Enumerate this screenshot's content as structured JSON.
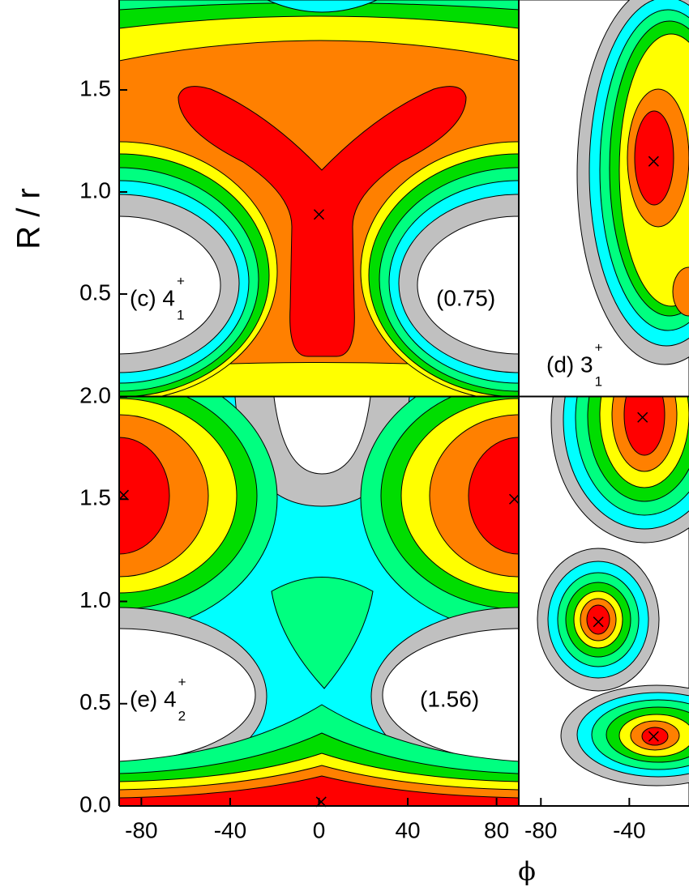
{
  "axis_labels": {
    "y": "R / r",
    "x": "ϕ"
  },
  "chart_data": [
    {
      "type": "contour",
      "label": "(c) 4",
      "label_sup": "+",
      "label_sub": "1",
      "energy": "(0.75)",
      "xlim": [
        -90,
        90
      ],
      "ylim": [
        0,
        1.94
      ],
      "yticks": [
        0.5,
        {
          "value": 1,
          "label": "1.0"
        },
        1.5
      ],
      "maxima": {
        "x": [
          0
        ],
        "y": [
          0.89
        ]
      }
    },
    {
      "type": "contour",
      "label": "(d) 3",
      "label_sup": "+",
      "label_sub": "1",
      "xlim": [
        -90,
        -13
      ],
      "ylim": [
        0,
        1.94
      ],
      "maxima": {
        "x": [
          -29
        ],
        "y": [
          1.15
        ]
      }
    },
    {
      "type": "contour",
      "label": "(e) 4",
      "label_sup": "+",
      "label_sub": "2",
      "energy": "(1.56)",
      "xlim": [
        -90,
        90
      ],
      "ylim": [
        0,
        2
      ],
      "xticks": [
        -80,
        -40,
        0,
        40,
        80
      ],
      "yticks": [
        {
          "value": 0,
          "label": "0.0"
        },
        0.5,
        {
          "value": 1,
          "label": "1.0"
        },
        1.5,
        {
          "value": 2,
          "label": "2.0"
        }
      ],
      "maxima": {
        "x": [
          -88,
          88,
          1
        ],
        "y": [
          1.52,
          1.5,
          0.02
        ]
      }
    },
    {
      "type": "contour",
      "xlim": [
        -90,
        -13
      ],
      "ylim": [
        0,
        2
      ],
      "xticks": [
        -80,
        -40
      ],
      "maxima": {
        "x": [
          -34,
          -54,
          -29
        ],
        "y": [
          1.9,
          0.9,
          0.34
        ]
      }
    }
  ]
}
